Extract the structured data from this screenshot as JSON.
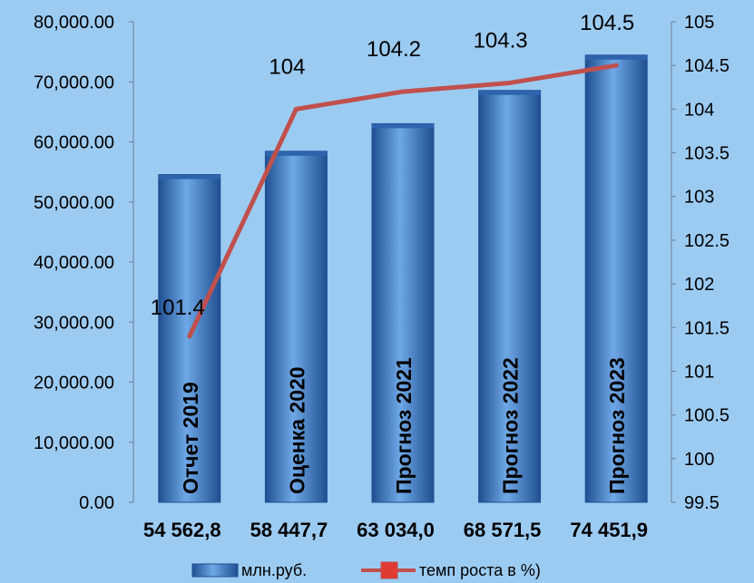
{
  "chart_data": {
    "type": "bar",
    "categories": [
      "Отчет 2019",
      "Оценка 2020",
      "Прогноз 2021",
      "Прогноз 2022",
      "Прогноз 2023"
    ],
    "value_labels": [
      "54 562,8",
      "58 447,7",
      "63 034,0",
      "68 571,5",
      "74 451,9"
    ],
    "series": [
      {
        "name": "млн.руб.",
        "type": "bar",
        "axis": "left",
        "values": [
          54562.8,
          58447.7,
          63034.0,
          68571.5,
          74451.9
        ]
      },
      {
        "name": "темп роста в %)",
        "type": "line",
        "axis": "right",
        "values": [
          101.4,
          104,
          104.2,
          104.3,
          104.5
        ],
        "labels": [
          "101.4",
          "104",
          "104.2",
          "104.3",
          "104.5"
        ]
      }
    ],
    "y_left": {
      "min": 0,
      "max": 80000,
      "step": 10000,
      "ticks": [
        "0.00",
        "10,000.00",
        "20,000.00",
        "30,000.00",
        "40,000.00",
        "50,000.00",
        "60,000.00",
        "70,000.00",
        "80,000.00"
      ]
    },
    "y_right": {
      "min": 99.5,
      "max": 105,
      "step": 0.5,
      "ticks": [
        "99.5",
        "100",
        "100.5",
        "101",
        "101.5",
        "102",
        "102.5",
        "103",
        "103.5",
        "104",
        "104.5",
        "105"
      ]
    },
    "colors": {
      "bar_light": "#6fa8e6",
      "bar_dark": "#1f4f92",
      "bar_top": "#2e64ad",
      "line": "#c0504d"
    },
    "legend": {
      "position": "bottom"
    }
  }
}
